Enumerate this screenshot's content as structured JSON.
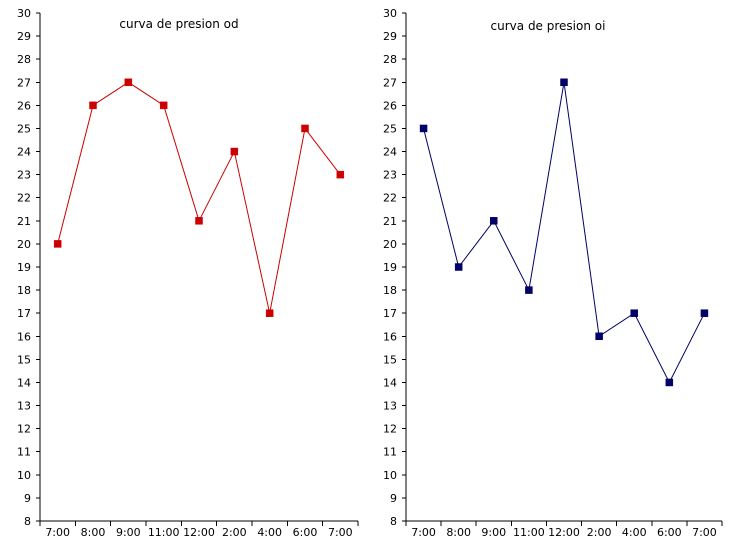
{
  "chart_data": [
    {
      "type": "line",
      "title": "curva de presion od",
      "xlabel": "",
      "ylabel": "",
      "categories": [
        "7:00",
        "8:00",
        "9:00",
        "11:00",
        "12:00",
        "2:00",
        "4:00",
        "6:00",
        "7:00"
      ],
      "values": [
        20,
        26,
        27,
        26,
        21,
        24,
        17,
        25,
        23
      ],
      "ylim": [
        8,
        30
      ],
      "ytick_step": 1,
      "grid": false,
      "legend": "none",
      "color": "#cc0000"
    },
    {
      "type": "line",
      "title": "curva de presion oi",
      "xlabel": "",
      "ylabel": "",
      "categories": [
        "7:00",
        "8:00",
        "9:00",
        "11:00",
        "12:00",
        "2:00",
        "4:00",
        "6:00",
        "7:00"
      ],
      "values": [
        25,
        19,
        21,
        18,
        27,
        16,
        17,
        14,
        17
      ],
      "ylim": [
        8,
        30
      ],
      "ytick_step": 1,
      "grid": false,
      "legend": "none",
      "color": "#000066"
    }
  ]
}
